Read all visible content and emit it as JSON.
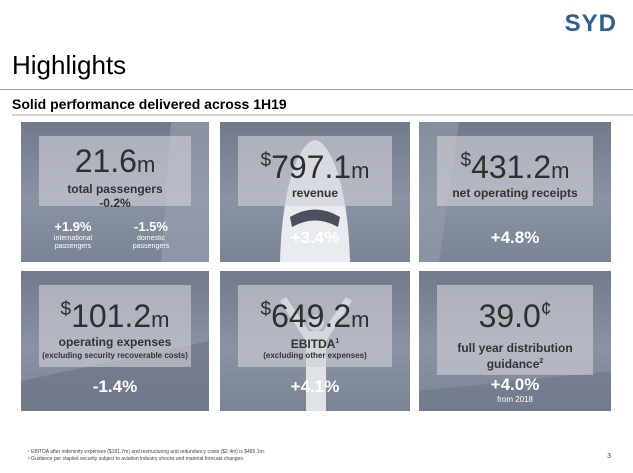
{
  "logo": "SYD",
  "title": "Highlights",
  "subtitle": "Solid performance delivered across 1H19",
  "cards": {
    "passengers": {
      "value": "21.6",
      "unit": "m",
      "label": "total passengers",
      "change_inline": "-0.2%",
      "international": {
        "value": "+1.9%",
        "label_line1": "international",
        "label_line2": "passengers"
      },
      "domestic": {
        "value": "-1.5%",
        "label_line1": "domestic",
        "label_line2": "passengers"
      }
    },
    "revenue": {
      "currency": "$",
      "value": "797.1",
      "unit": "m",
      "label": "revenue",
      "change": "+3.4%"
    },
    "nor": {
      "currency": "$",
      "value": "431.2",
      "unit": "m",
      "label": "net operating receipts",
      "change": "+4.8%"
    },
    "opex": {
      "currency": "$",
      "value": "101.2",
      "unit": "m",
      "label": "operating expenses",
      "note": "(excluding security recoverable costs)",
      "change": "-1.4%"
    },
    "ebitda": {
      "currency": "$",
      "value": "649.2",
      "unit": "m",
      "label": "EBITDA",
      "label_sup": "1",
      "note": "(excluding other expenses)",
      "change": "+4.1%"
    },
    "distribution": {
      "value": "39.0",
      "unit": "¢",
      "label_line1": "full year distribution",
      "label_line2": "guidance",
      "label_sup": "2",
      "change": "+4.0%",
      "from": "from 2018"
    }
  },
  "footnotes": [
    "¹ EBITDA after indemnity expenses ($181.7m) and restructuring and redundancy costs ($2.4m) is $465.1m.",
    "² Guidance per stapled security subject to aviation industry shocks and material forecast changes."
  ],
  "page_number": "3"
}
